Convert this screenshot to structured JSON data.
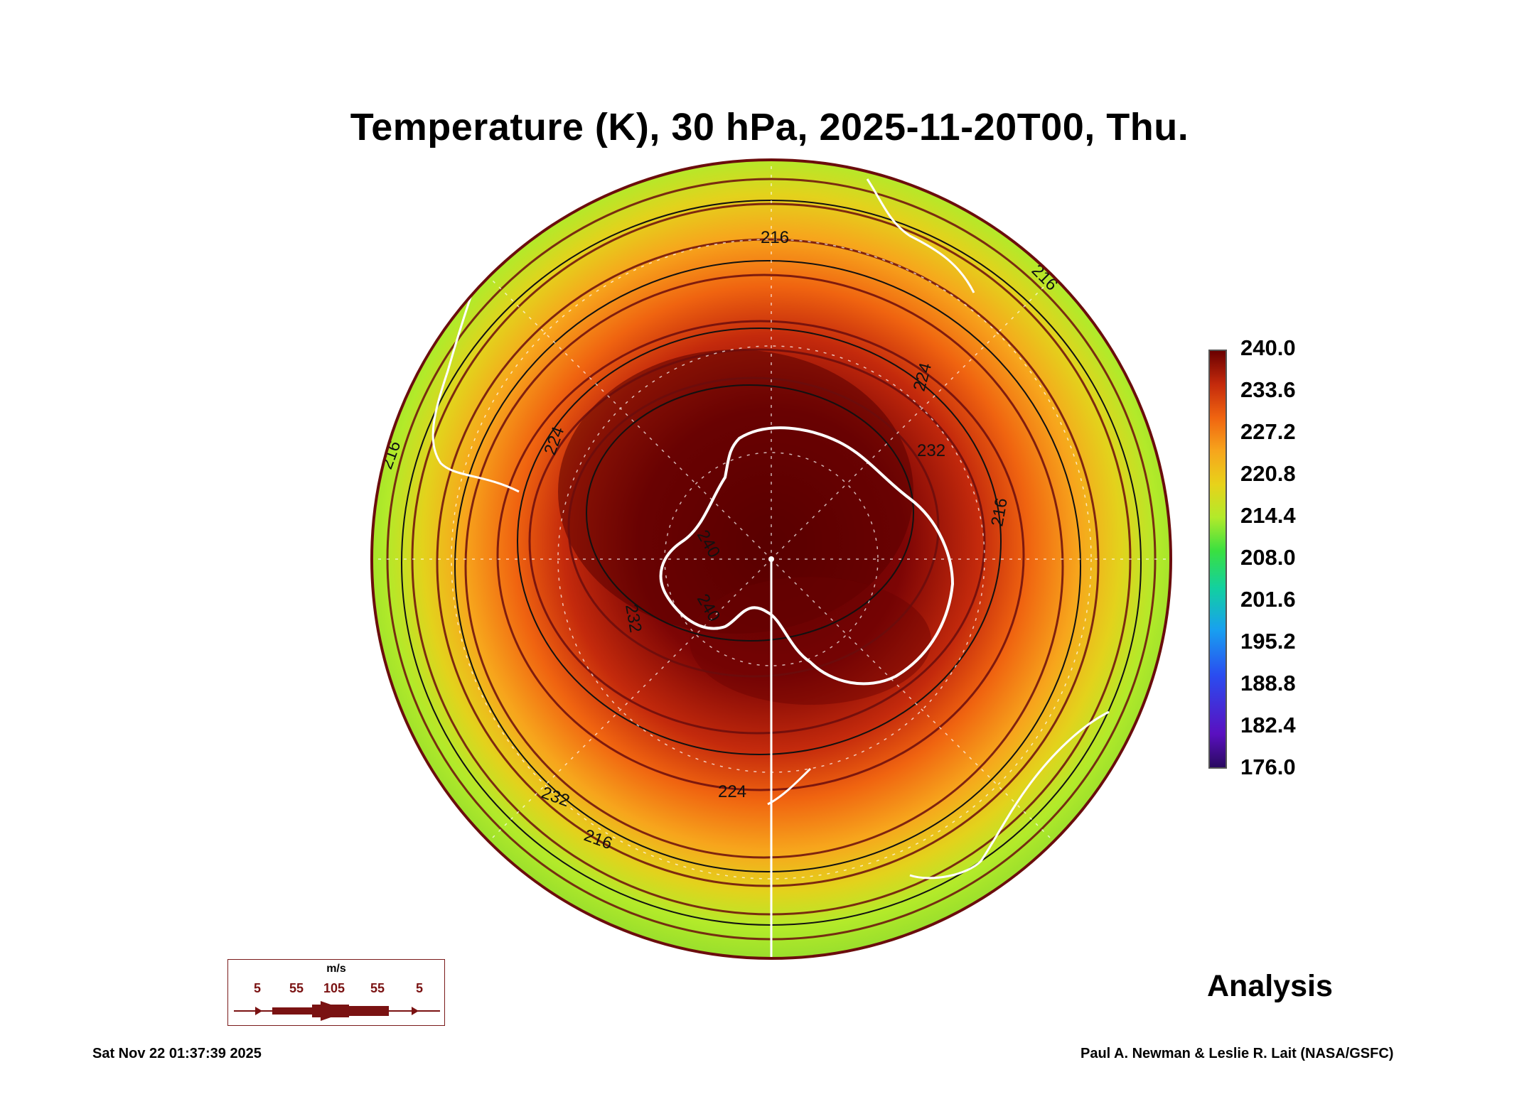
{
  "title": "Temperature (K), 30 hPa, 2025-11-20T00, Thu.",
  "colorbar": {
    "labels": [
      "240.0",
      "233.6",
      "227.2",
      "220.8",
      "214.4",
      "208.0",
      "201.6",
      "195.2",
      "188.8",
      "182.4",
      "176.0"
    ],
    "min": 176.0,
    "max": 240.0
  },
  "contour_labels": [
    "216",
    "216",
    "216",
    "216",
    "224",
    "224",
    "224",
    "232",
    "232",
    "232",
    "240",
    "240",
    "216"
  ],
  "wind_legend": {
    "unit": "m/s",
    "values": [
      "5",
      "55",
      "105",
      "55",
      "5"
    ]
  },
  "product_label": "Analysis",
  "timestamp": "Sat Nov 22 01:37:39 2025",
  "credit": "Paul A. Newman & Leslie R. Lait (NASA/GSFC)",
  "colors": {
    "max": "#5a0000",
    "warm": "#b01a0a",
    "orange": "#f26a10",
    "yellow": "#e8d21a",
    "green": "#a8ee2a",
    "streamline": "#6b0d0d",
    "coastline": "#ffffff"
  }
}
